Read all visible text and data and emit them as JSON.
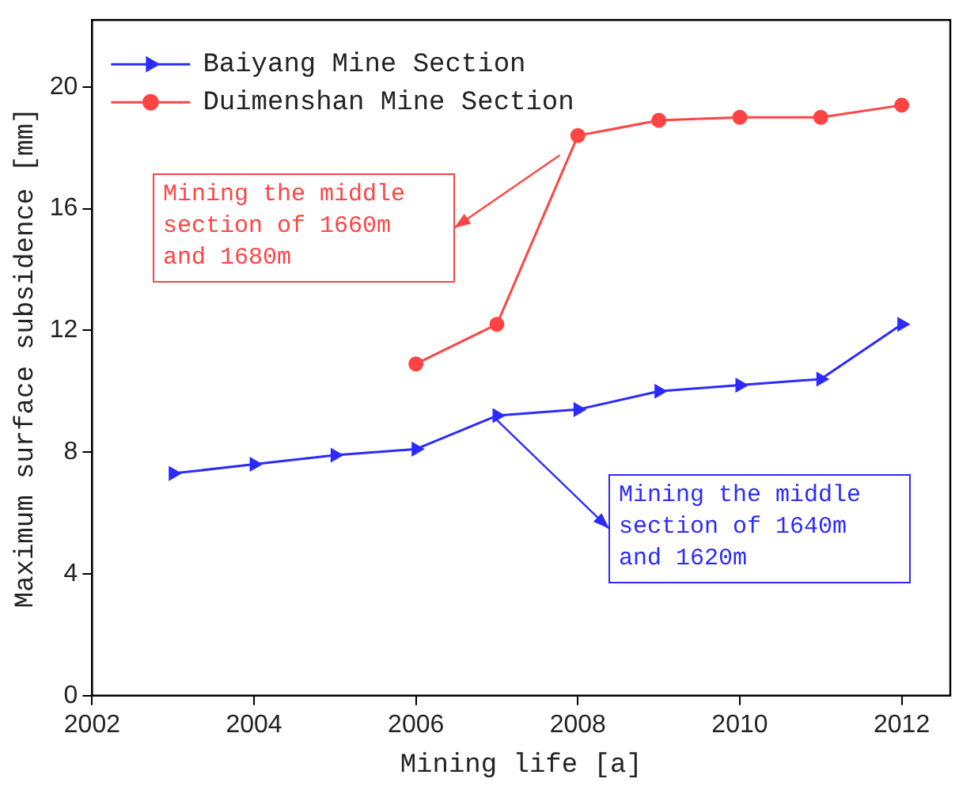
{
  "chart_data": {
    "type": "line",
    "xlabel": "Mining life [a]",
    "ylabel": "Maximum surface subsidence [mm]",
    "xlim": [
      2002,
      2012.6
    ],
    "xticks": [
      2002,
      2004,
      2006,
      2008,
      2010,
      2012
    ],
    "ylim": [
      0,
      22.2
    ],
    "yticks": [
      0,
      4,
      8,
      12,
      16,
      20
    ],
    "legend": "top left",
    "grid": false,
    "series": [
      {
        "name": "Baiyang Mine Section",
        "color": "#2b2bff",
        "marker": "triangle",
        "x": [
          2003,
          2004,
          2005,
          2006,
          2007,
          2008,
          2009,
          2010,
          2011,
          2012
        ],
        "values": [
          7.3,
          7.6,
          7.9,
          8.1,
          9.2,
          9.4,
          10.0,
          10.2,
          10.4,
          12.2
        ]
      },
      {
        "name": "Duimenshan Mine Section",
        "color": "#ff4444",
        "marker": "circle",
        "x": [
          2006,
          2007,
          2008,
          2009,
          2010,
          2011,
          2012
        ],
        "values": [
          10.9,
          12.2,
          18.4,
          18.9,
          19.0,
          19.0,
          19.4
        ]
      }
    ],
    "annotations": [
      "Mining the middle section of 1660m and 1680m",
      "Mining the middle section of 1640m and 1620m"
    ]
  }
}
